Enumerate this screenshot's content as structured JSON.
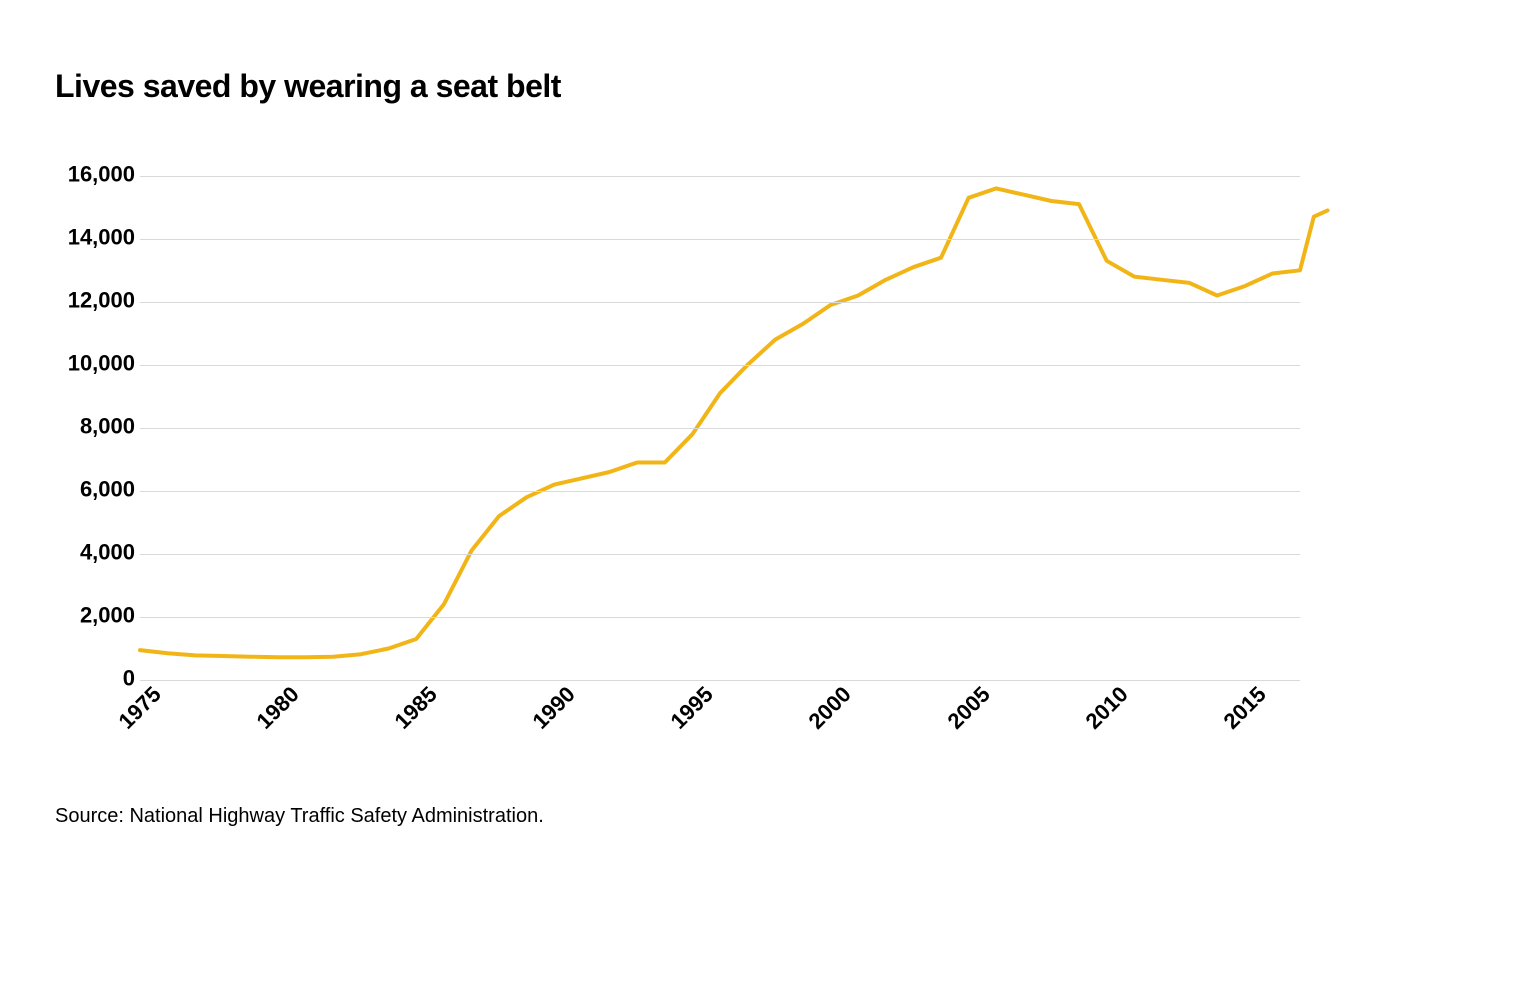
{
  "title": "Lives saved by wearing a seat belt",
  "source": "Source: National Highway Traffic Safety Administration.",
  "chart": {
    "type": "line",
    "line_color": "#f2b518",
    "line_width": 4,
    "background_color": "#ffffff",
    "grid_color": "#d9d9d9",
    "title_fontsize": 32,
    "label_fontsize": 22,
    "x": {
      "min": 1975,
      "max": 2017,
      "ticks": [
        1975,
        1980,
        1985,
        1990,
        1995,
        2000,
        2005,
        2010,
        2015
      ],
      "tick_labels": [
        "1975",
        "1980",
        "1985",
        "1990",
        "1995",
        "2000",
        "2005",
        "2010",
        "2015"
      ],
      "tick_rotation": -45
    },
    "y": {
      "min": 0,
      "max": 16500,
      "ticks": [
        0,
        2000,
        4000,
        6000,
        8000,
        10000,
        12000,
        14000,
        16000
      ],
      "tick_labels": [
        "0",
        "2,000",
        "4,000",
        "6,000",
        "8,000",
        "10,000",
        "12,000",
        "14,000",
        "16,000"
      ]
    },
    "series": {
      "years": [
        1975,
        1976,
        1977,
        1978,
        1979,
        1980,
        1981,
        1982,
        1983,
        1984,
        1985,
        1986,
        1987,
        1988,
        1989,
        1990,
        1991,
        1992,
        1993,
        1994,
        1995,
        1996,
        1997,
        1998,
        1999,
        2000,
        2001,
        2002,
        2003,
        2004,
        2005,
        2006,
        2007,
        2008,
        2009,
        2010,
        2011,
        2012,
        2013,
        2014,
        2015,
        2016,
        2017
      ],
      "values": [
        950,
        850,
        780,
        760,
        740,
        720,
        720,
        740,
        820,
        1000,
        1300,
        2400,
        4100,
        5200,
        5800,
        6200,
        6400,
        6600,
        6900,
        6900,
        7800,
        9100,
        10000,
        10800,
        11300,
        11900,
        12200,
        12700,
        13100,
        13400,
        15300,
        15600,
        15400,
        15200,
        15100,
        13300,
        12800,
        12700,
        12600,
        12200,
        12500,
        12900,
        13000
      ]
    },
    "extra_tail": {
      "years": [
        2017.5,
        2018
      ],
      "values": [
        14700,
        14900
      ]
    }
  }
}
